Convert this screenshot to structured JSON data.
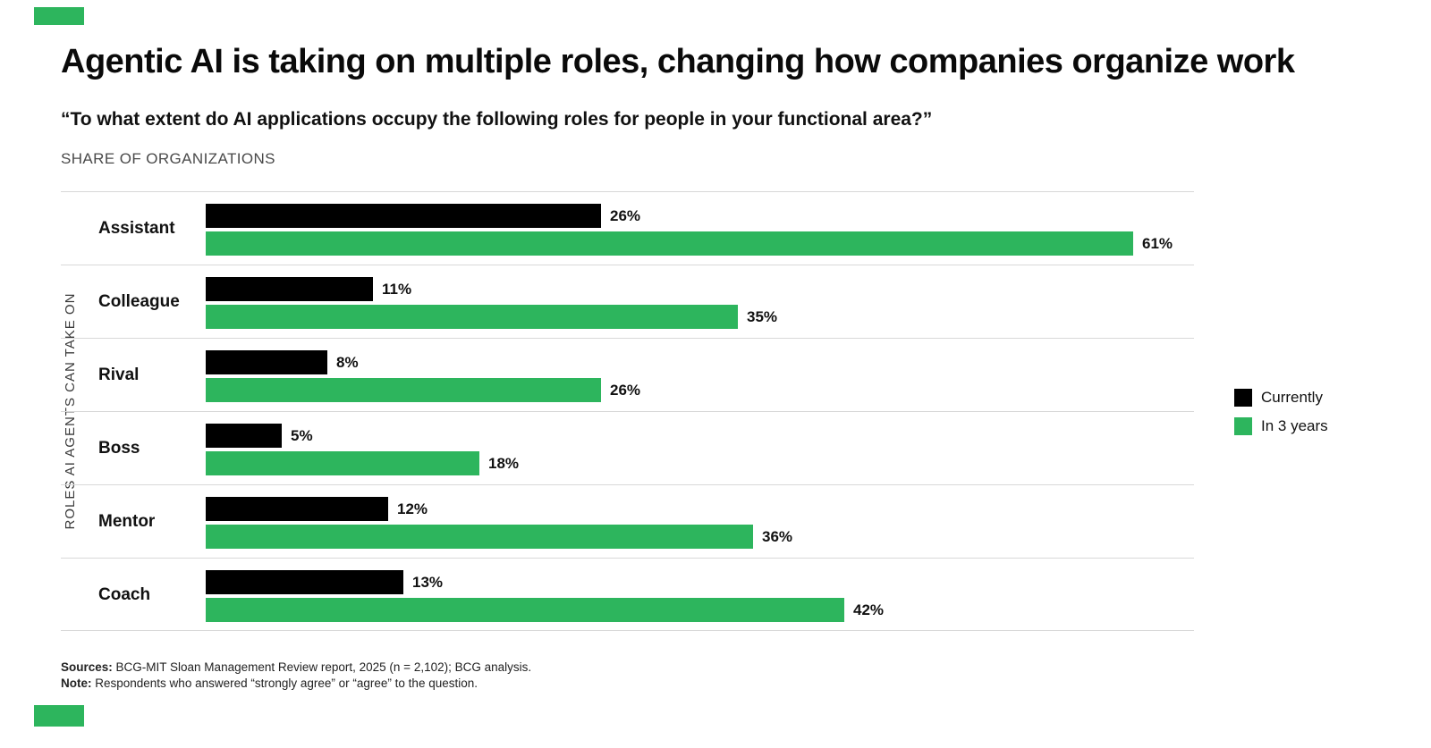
{
  "header": {
    "title": "Agentic AI is taking on multiple roles, changing how companies organize work",
    "subtitle": "“To what extent do AI applications occupy the following roles for people in your functional area?”",
    "kicker": "SHARE OF ORGANIZATIONS"
  },
  "colors": {
    "currently": "#000000",
    "in_3_years": "#2db55d",
    "separator": "#d8d8d8",
    "accent": "#2db55d"
  },
  "chart_data": {
    "type": "bar",
    "orientation": "horizontal",
    "title": "Agentic AI is taking on multiple roles, changing how companies organize work",
    "subtitle": "“To what extent do AI applications occupy the following roles for people in your functional area?”",
    "unit": "%",
    "xlabel": "SHARE OF ORGANIZATIONS",
    "ylabel": "ROLES AI AGENTS CAN TAKE ON",
    "xlim": [
      0,
      65
    ],
    "grid": false,
    "legend_position": "right",
    "categories": [
      "Assistant",
      "Colleague",
      "Rival",
      "Boss",
      "Mentor",
      "Coach"
    ],
    "series": [
      {
        "name": "Currently",
        "color": "#000000",
        "values": [
          26,
          11,
          8,
          5,
          12,
          13
        ]
      },
      {
        "name": "In 3 years",
        "color": "#2db55d",
        "values": [
          61,
          35,
          26,
          18,
          36,
          42
        ]
      }
    ],
    "data_labels": [
      [
        "26%",
        "11%",
        "8%",
        "5%",
        "12%",
        "13%"
      ],
      [
        "61%",
        "35%",
        "26%",
        "18%",
        "36%",
        "42%"
      ]
    ]
  },
  "axis": {
    "y_label": "ROLES AI AGENTS CAN TAKE ON"
  },
  "legend": [
    {
      "label": "Currently",
      "color": "#000000"
    },
    {
      "label": "In 3 years",
      "color": "#2db55d"
    }
  ],
  "footnotes": {
    "sources_label": "Sources:",
    "sources_text": " BCG-MIT Sloan Management Review report, 2025 (n = 2,102); BCG analysis.",
    "note_label": "Note:",
    "note_text": " Respondents who answered “strongly agree” or “agree” to the question."
  }
}
